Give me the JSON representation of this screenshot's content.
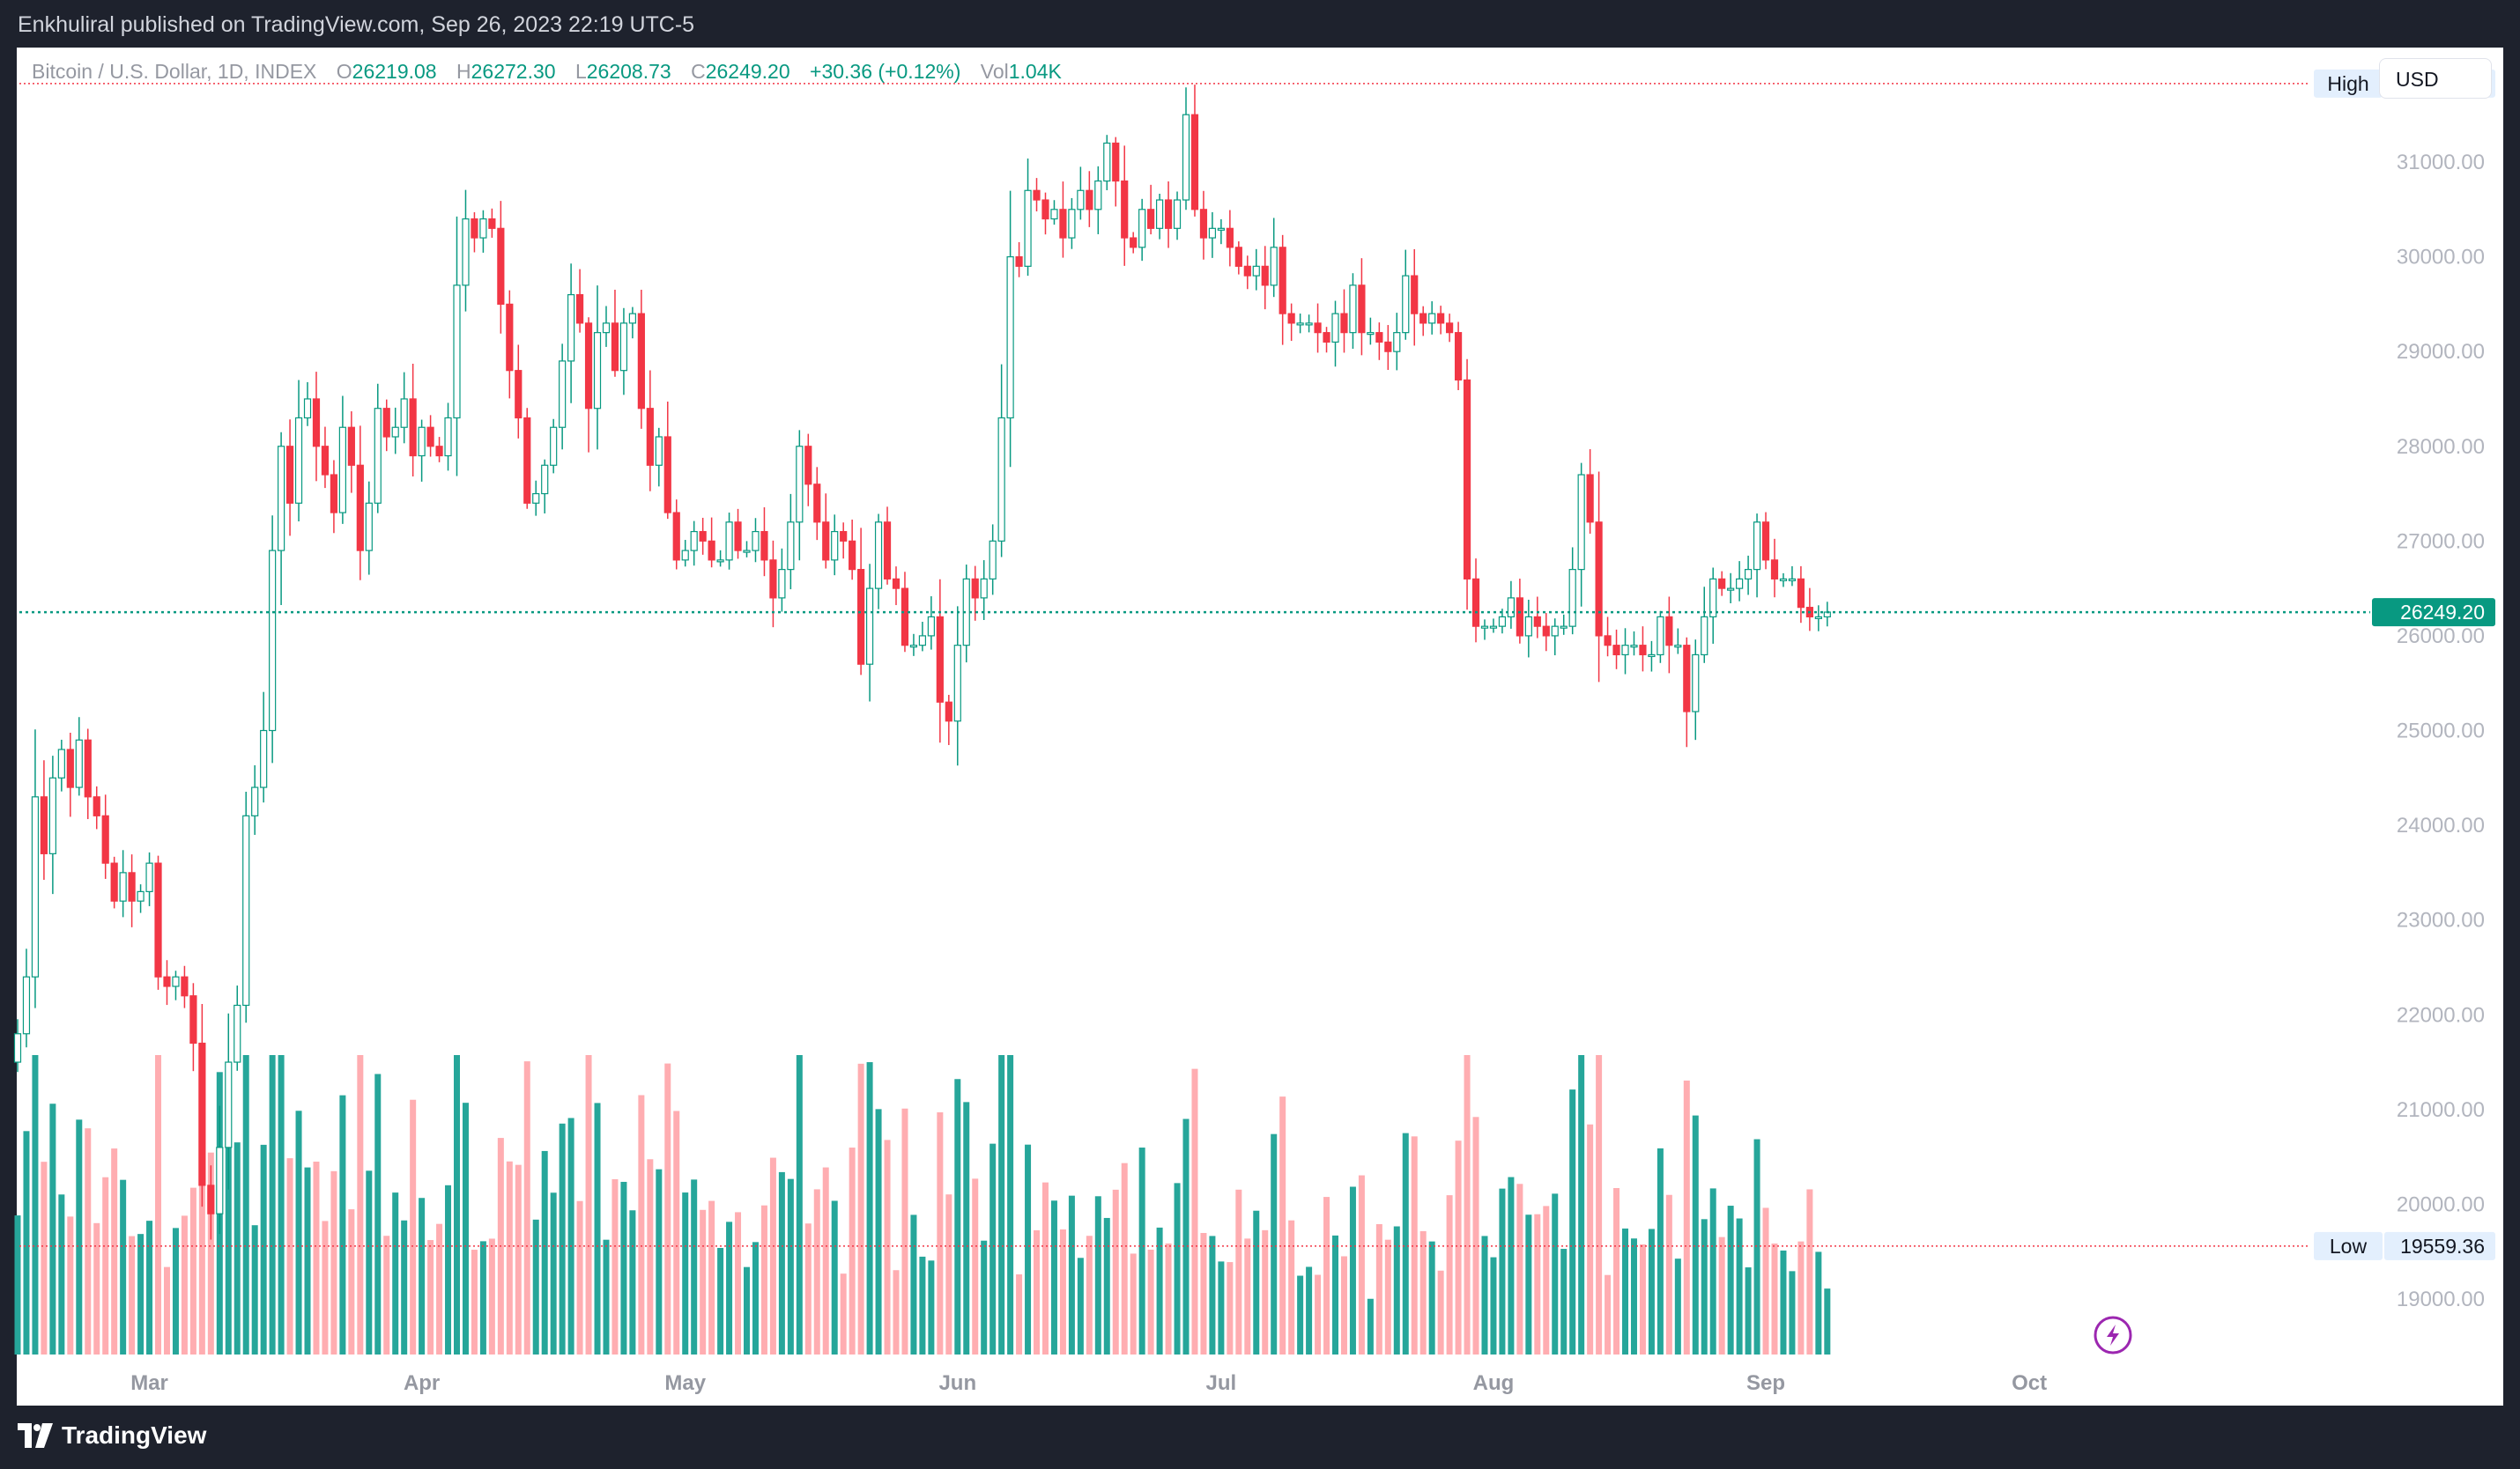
{
  "header": {
    "published_text": "Enkhuliral published on TradingView.com, Sep 26, 2023 22:19 UTC-5"
  },
  "footer": {
    "brand": "TradingView"
  },
  "toolbar": {
    "currency": "USD"
  },
  "legend": {
    "symbol": "Bitcoin / U.S. Dollar, 1D, INDEX",
    "o_label": "O",
    "o_value": "26219.08",
    "h_label": "H",
    "h_value": "26272.30",
    "l_label": "L",
    "l_value": "26208.73",
    "c_label": "C",
    "c_value": "26249.20",
    "change": "+30.36 (+0.12%)",
    "vol_label": "Vol",
    "vol_value": "1.04K"
  },
  "colors": {
    "up": "#089981",
    "down": "#f23645",
    "vol_up": "#26a69a",
    "vol_down": "#ffadb1",
    "axis_text": "#131722",
    "last_price": "#089981"
  },
  "icons": {
    "lightning": "lightning-icon",
    "logo": "tradingview-logo-icon"
  },
  "chart_data": {
    "type": "candlestick",
    "title": "Bitcoin / U.S. Dollar, 1D, INDEX",
    "ylim": [
      18300,
      32200
    ],
    "y_ticks": [
      19000,
      20000,
      21000,
      22000,
      23000,
      24000,
      25000,
      26000,
      27000,
      28000,
      29000,
      30000,
      31000
    ],
    "y_tick_labels": [
      "19000.00",
      "20000.00",
      "21000.00",
      "22000.00",
      "23000.00",
      "24000.00",
      "25000.00",
      "26000.00",
      "27000.00",
      "28000.00",
      "29000.00",
      "30000.00",
      "31000.00"
    ],
    "x_labels": [
      {
        "label": "Mar",
        "date": "2023-03-01"
      },
      {
        "label": "Apr",
        "date": "2023-04-01"
      },
      {
        "label": "May",
        "date": "2023-05-01"
      },
      {
        "label": "Jun",
        "date": "2023-06-01"
      },
      {
        "label": "Jul",
        "date": "2023-07-01"
      },
      {
        "label": "Aug",
        "date": "2023-08-01"
      },
      {
        "label": "Sep",
        "date": "2023-09-01"
      },
      {
        "label": "Oct",
        "date": "2023-10-01"
      }
    ],
    "high_marker": {
      "label": "High",
      "value": 31829.0,
      "text": "31829.00"
    },
    "low_marker": {
      "label": "Low",
      "value": 19559.36,
      "text": "19559.36"
    },
    "last_price": {
      "value": 26249.2,
      "text": "26249.20"
    },
    "start_date": "2023-02-14",
    "closes": [
      21800,
      22400,
      24300,
      23700,
      24500,
      24800,
      24400,
      24900,
      24300,
      24100,
      23600,
      23200,
      23500,
      23200,
      23300,
      23600,
      22400,
      22300,
      22400,
      22200,
      21700,
      20200,
      19900,
      20600,
      21500,
      22100,
      24100,
      24400,
      25000,
      26900,
      28000,
      27400,
      28300,
      28500,
      28000,
      27700,
      27300,
      28200,
      27800,
      26900,
      27400,
      28400,
      28100,
      28200,
      28500,
      27900,
      28200,
      28000,
      27900,
      28300,
      29700,
      30400,
      30200,
      30400,
      30300,
      29500,
      28800,
      28300,
      27400,
      27500,
      27800,
      28200,
      28900,
      29600,
      29300,
      28400,
      29200,
      29300,
      28800,
      29300,
      29400,
      28400,
      27800,
      28100,
      27300,
      26800,
      26900,
      27100,
      27000,
      26800,
      26800,
      27200,
      26900,
      26900,
      27100,
      26800,
      26400,
      26700,
      27200,
      28000,
      27600,
      27200,
      26800,
      27100,
      27000,
      26700,
      25700,
      26500,
      27200,
      26600,
      26500,
      25900,
      25900,
      26000,
      26200,
      25300,
      25100,
      25900,
      26600,
      26400,
      26600,
      27000,
      28300,
      30000,
      29900,
      30700,
      30600,
      30400,
      30500,
      30200,
      30500,
      30700,
      30500,
      30800,
      31200,
      30800,
      30200,
      30100,
      30500,
      30300,
      30600,
      30300,
      30600,
      31500,
      30500,
      30200,
      30300,
      30300,
      30100,
      29900,
      29800,
      29900,
      29700,
      30100,
      29400,
      29300,
      29300,
      29300,
      29200,
      29100,
      29400,
      29200,
      29700,
      29200,
      29200,
      29100,
      29000,
      29200,
      29800,
      29400,
      29300,
      29400,
      29300,
      29200,
      28700,
      26600,
      26100,
      26100,
      26100,
      26200,
      26400,
      26000,
      26200,
      26100,
      26000,
      26100,
      26100,
      26700,
      27700,
      27200,
      26000,
      25900,
      25800,
      25900,
      25900,
      25800,
      25800,
      26200,
      25900,
      25900,
      25200,
      25800,
      26200,
      26600,
      26500,
      26500,
      26600,
      26700,
      27200,
      26800,
      26600,
      26600,
      26600,
      26300,
      26200,
      26200,
      26250
    ],
    "volumes": {
      "up_color": "#26a69a",
      "down_color": "#ffadb1"
    }
  }
}
